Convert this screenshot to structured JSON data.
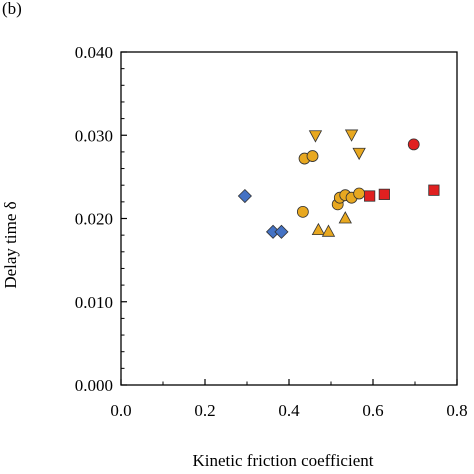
{
  "panel_label": "(b)",
  "chart_data": {
    "type": "scatter",
    "title": "",
    "xlabel": "Kinetic friction coefficient",
    "ylabel": "Delay time δ",
    "xlim": [
      0.0,
      0.8
    ],
    "ylim": [
      0.0,
      0.04
    ],
    "xticks": [
      "0.0",
      "0.2",
      "0.4",
      "0.6",
      "0.8"
    ],
    "yticks": [
      "0.000",
      "0.010",
      "0.020",
      "0.030",
      "0.040"
    ],
    "grid": false,
    "legend": "none",
    "series": [
      {
        "marker": "diamond",
        "color": "#4472C4",
        "points": [
          [
            0.295,
            0.0227
          ],
          [
            0.362,
            0.0184
          ],
          [
            0.382,
            0.0184
          ]
        ]
      },
      {
        "marker": "circle",
        "color": "#E8A820",
        "points": [
          [
            0.437,
            0.0272
          ],
          [
            0.456,
            0.0275
          ],
          [
            0.433,
            0.0208
          ],
          [
            0.516,
            0.0217
          ],
          [
            0.521,
            0.0225
          ],
          [
            0.534,
            0.0228
          ],
          [
            0.549,
            0.0225
          ],
          [
            0.567,
            0.023
          ]
        ]
      },
      {
        "marker": "triangle-down",
        "color": "#E8A820",
        "points": [
          [
            0.463,
            0.03
          ],
          [
            0.549,
            0.0301
          ],
          [
            0.567,
            0.0279
          ]
        ]
      },
      {
        "marker": "triangle-up",
        "color": "#E8A820",
        "points": [
          [
            0.47,
            0.0186
          ],
          [
            0.494,
            0.0184
          ],
          [
            0.534,
            0.02
          ]
        ]
      },
      {
        "marker": "circle",
        "color": "#E02020",
        "points": [
          [
            0.697,
            0.0289
          ]
        ]
      },
      {
        "marker": "square",
        "color": "#E02020",
        "points": [
          [
            0.592,
            0.0227
          ],
          [
            0.627,
            0.0229
          ],
          [
            0.745,
            0.0234
          ]
        ]
      }
    ]
  }
}
